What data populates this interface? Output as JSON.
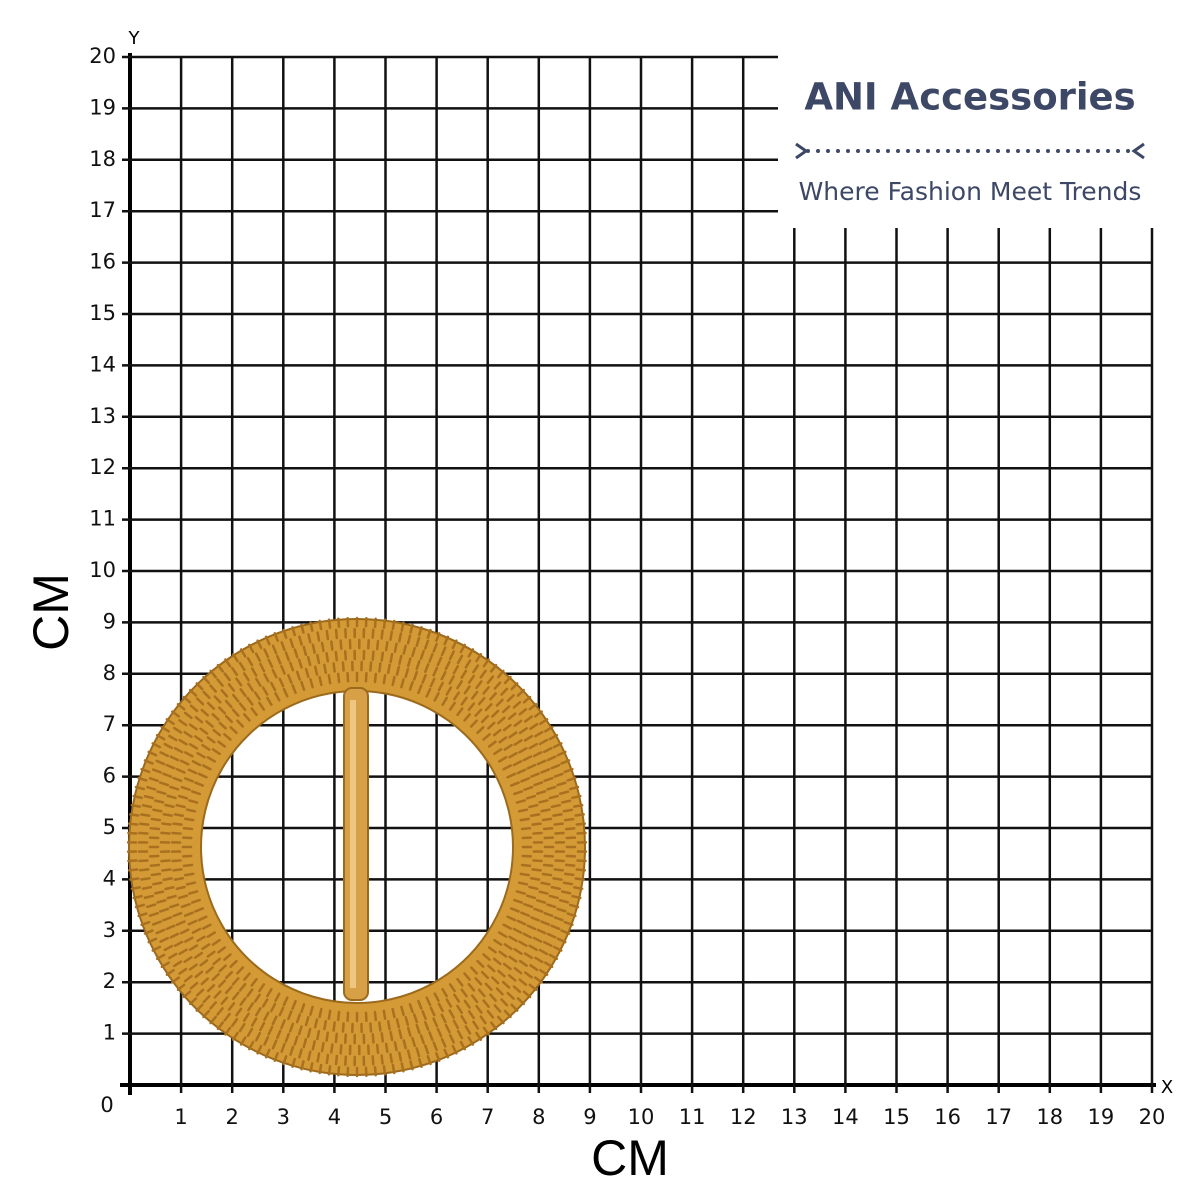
{
  "axes": {
    "origin": "0",
    "x_name": "X",
    "y_name": "Y",
    "x_label": "CM",
    "y_label": "CM",
    "x_ticks": [
      1,
      2,
      3,
      4,
      5,
      6,
      7,
      8,
      9,
      10,
      11,
      12,
      13,
      14,
      15,
      16,
      17,
      18,
      19,
      20
    ],
    "y_ticks": [
      1,
      2,
      3,
      4,
      5,
      6,
      7,
      8,
      9,
      10,
      11,
      12,
      13,
      14,
      15,
      16,
      17,
      18,
      19,
      20
    ]
  },
  "brand": {
    "title": "ANI Accessories",
    "tagline": "Where Fashion Meet Trends"
  }
}
